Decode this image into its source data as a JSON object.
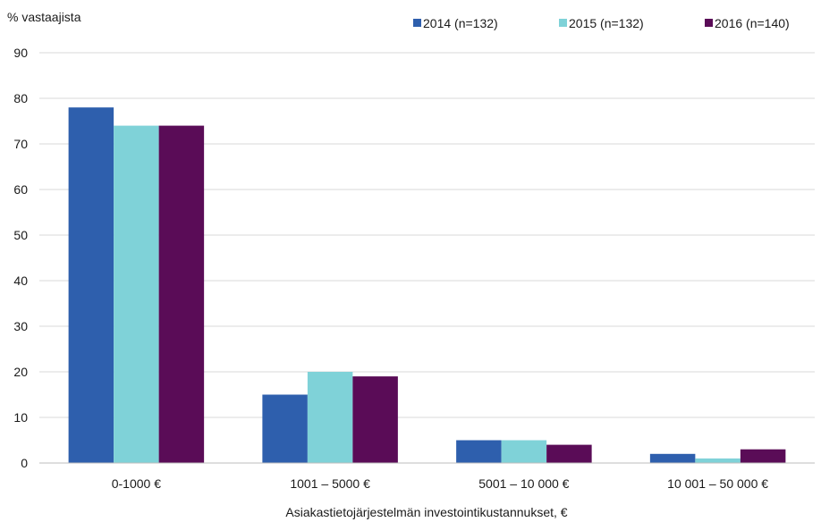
{
  "chart_data": {
    "type": "bar",
    "ylabel": "% vastaajista",
    "xlabel": "Asiakastietojärjestelmän investointikustannukset, €",
    "categories": [
      "0-1000 €",
      "1001 – 5000 €",
      "5001 – 10 000 €",
      "10 001 – 50 000 €"
    ],
    "series": [
      {
        "name": "2014 (n=132)",
        "color": "#2e5fad",
        "values": [
          78,
          15,
          5,
          2
        ]
      },
      {
        "name": "2015 (n=132)",
        "color": "#7fd2d8",
        "values": [
          74,
          20,
          5,
          1
        ]
      },
      {
        "name": "2016 (n=140)",
        "color": "#5a0c57",
        "values": [
          74,
          19,
          4,
          3
        ]
      }
    ],
    "ylim": [
      0,
      90
    ],
    "yticks": [
      0,
      10,
      20,
      30,
      40,
      50,
      60,
      70,
      80,
      90
    ],
    "grid": true,
    "legend_position": "top-right"
  }
}
